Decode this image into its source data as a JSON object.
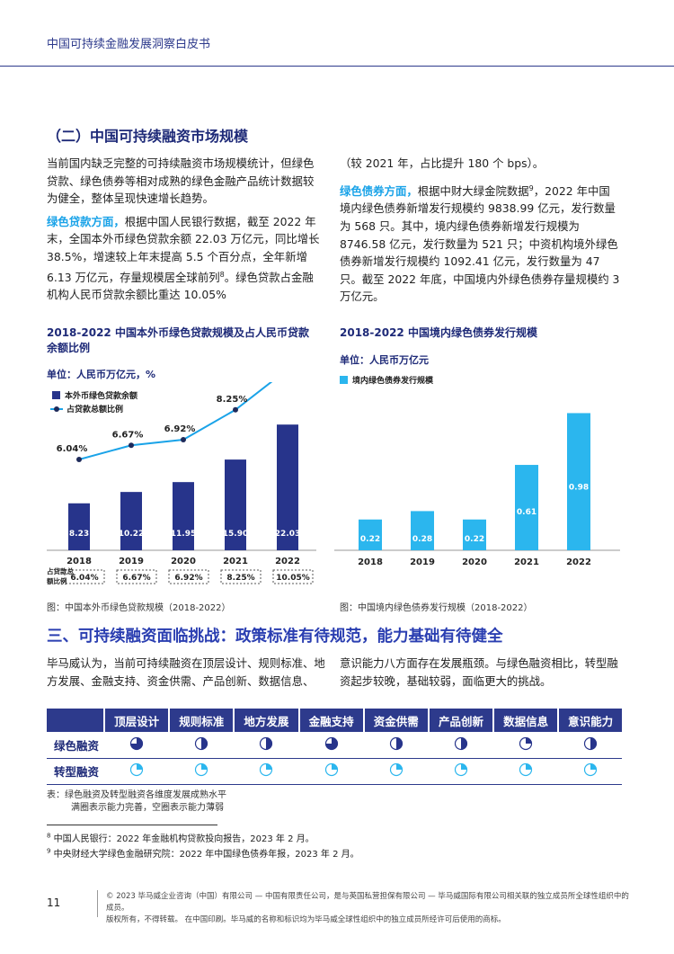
{
  "header": {
    "title": "中国可持续金融发展洞察白皮书"
  },
  "section2": {
    "title": "（二）中国可持续融资市场规模"
  },
  "left_col": {
    "p1": "当前国内缺乏完整的可持续融资市场规模统计，但绿色贷款、绿色债券等相对成熟的绿色金融产品统计数据较为健全，整体呈现快速增长趋势。",
    "p2_hl": "绿色贷款方面，",
    "p2": "根据中国人民银行数据，截至 2022 年末，全国本外币绿色贷款余额 22.03 万亿元，同比增长 38.5%，增速较上年末提高 5.5 个百分点，全年新增 6.13 万亿元，存量规模居全球前列",
    "p2_sup": "8",
    "p2_end": "。绿色贷款占金融机构人民币贷款余额比重达 10.05%"
  },
  "right_col": {
    "p1": "（较 2021 年，占比提升 180 个 bps）。",
    "p2_hl": "绿色债券方面，",
    "p2": "根据中财大绿金院数据",
    "p2_sup": "9",
    "p2_end": "，2022 年中国境内绿色债券新增发行规模约 9838.99 亿元，发行数量为 568 只。其中，境内绿色债券新增发行规模为 8746.58 亿元，发行数量为 521 只；中资机构境外绿色债券新增发行规模约 1092.41 亿元，发行数量为 47 只。截至 2022 年底，中国境内外绿色债券存量规模约 3 万亿元。"
  },
  "chart_data": [
    {
      "type": "bar",
      "title": "2018-2022 中国本外币绿色贷款规模及占人民币贷款余额比例",
      "unit": "单位：人民币万亿元，%",
      "categories": [
        "2018",
        "2019",
        "2020",
        "2021",
        "2022"
      ],
      "series": [
        {
          "name": "本外币绿色贷款余额",
          "values": [
            8.23,
            10.22,
            11.95,
            15.9,
            22.03
          ],
          "labels": [
            "8.23",
            "10.22",
            "11.95",
            "15.90",
            "22.03"
          ],
          "color": "#27348b"
        },
        {
          "name": "占贷款总额比例",
          "type": "line",
          "values": [
            6.04,
            6.67,
            6.92,
            8.25,
            10.05
          ],
          "labels": [
            "6.04%",
            "6.67%",
            "6.92%",
            "8.25%",
            "10.05%"
          ],
          "color": "#1aa3e8"
        }
      ],
      "row_label": "占贷款总额比例",
      "caption": "图：中国本外币绿色贷款规模（2018-2022）"
    },
    {
      "type": "bar",
      "title": "2018-2022 中国境内绿色债券发行规模",
      "unit": "单位：人民币万亿元",
      "categories": [
        "2018",
        "2019",
        "2020",
        "2021",
        "2022"
      ],
      "series": [
        {
          "name": "境内绿色债券发行规模",
          "values": [
            0.22,
            0.28,
            0.22,
            0.61,
            0.98
          ],
          "labels": [
            "0.22",
            "0.28",
            "0.22",
            "0.61",
            "0.98"
          ],
          "color": "#2bb6ee"
        }
      ],
      "caption": "图：中国境内绿色债券发行规模（2018-2022）"
    }
  ],
  "section3": {
    "title": "三、可持续融资面临挑战：政策标准有待规范，能力基础有待健全",
    "p_left": "毕马威认为，当前可持续融资在顶层设计、规则标准、地方发展、金融支持、资金供需、产品创新、数据信息、",
    "p_right": "意识能力八方面存在发展瓶颈。与绿色融资相比，转型融资起步较晚，基础较弱，面临更大的挑战。"
  },
  "table": {
    "headers": [
      "顶层设计",
      "规则标准",
      "地方发展",
      "金融支持",
      "资金供需",
      "产品创新",
      "数据信息",
      "意识能力"
    ],
    "rows": [
      {
        "label": "绿色融资",
        "levels": [
          0.75,
          0.5,
          0.5,
          0.75,
          0.5,
          0.5,
          0.25,
          0.5
        ]
      },
      {
        "label": "转型融资",
        "levels": [
          0.25,
          0.25,
          0.25,
          0.25,
          0.25,
          0.25,
          0.25,
          0.25
        ]
      }
    ],
    "note_1": "表：绿色融资及转型融资各维度发展成熟水平",
    "note_2": "满圈表示能力完善，空圈表示能力薄弱"
  },
  "footnotes": [
    {
      "num": "8",
      "text": "中国人民银行：2022 年金融机构贷款投向报告，2023 年 2 月。"
    },
    {
      "num": "9",
      "text": "中央财经大学绿色金融研究院：2022 年中国绿色债券年报，2023 年 2 月。"
    }
  ],
  "footer": {
    "page": "11",
    "line1": "© 2023 毕马威企业咨询（中国）有限公司 — 中国有限责任公司，是与英国私营担保有限公司 — 毕马威国际有限公司相关联的独立成员所全球性组织中的成员。",
    "line2": "版权所有，不得转载。 在中国印刷。毕马威的名称和标识均为毕马威全球性组织中的独立成员所经许可后使用的商标。"
  },
  "colors": {
    "navy": "#27348b",
    "cyan": "#2bb6ee",
    "line": "#1aa3e8"
  }
}
